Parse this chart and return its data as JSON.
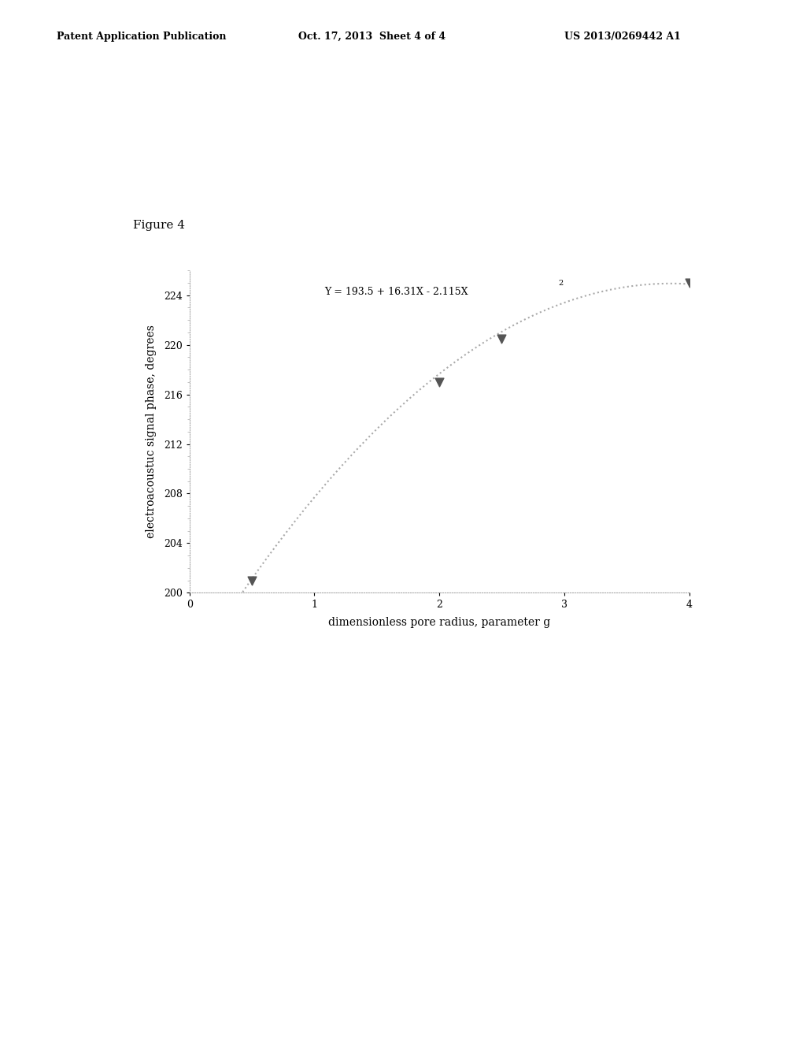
{
  "header_left": "Patent Application Publication",
  "header_center": "Oct. 17, 2013  Sheet 4 of 4",
  "header_right": "US 2013/0269442 A1",
  "figure_label": "Figure 4",
  "data_points_x": [
    0.5,
    2.0,
    2.5,
    4.0
  ],
  "data_points_y": [
    201.0,
    217.0,
    220.5,
    225.0
  ],
  "curve_a": 193.5,
  "curve_b": 16.31,
  "curve_c": -2.115,
  "x_min": 0,
  "x_max": 4,
  "y_min": 200,
  "y_max": 228,
  "xlabel": "dimensionless pore radius, parameter g",
  "ylabel": "electroacoustuc signal phase, degrees",
  "yticks": [
    200,
    204,
    208,
    212,
    216,
    220,
    224
  ],
  "xticks": [
    0,
    1,
    2,
    3,
    4
  ],
  "background_color": "#ffffff",
  "curve_color": "#aaaaaa",
  "marker_color": "#555555",
  "text_color": "#000000",
  "header_fontsize": 9,
  "figure_label_fontsize": 11,
  "axis_label_fontsize": 10,
  "tick_fontsize": 9,
  "eq_fontsize": 9
}
